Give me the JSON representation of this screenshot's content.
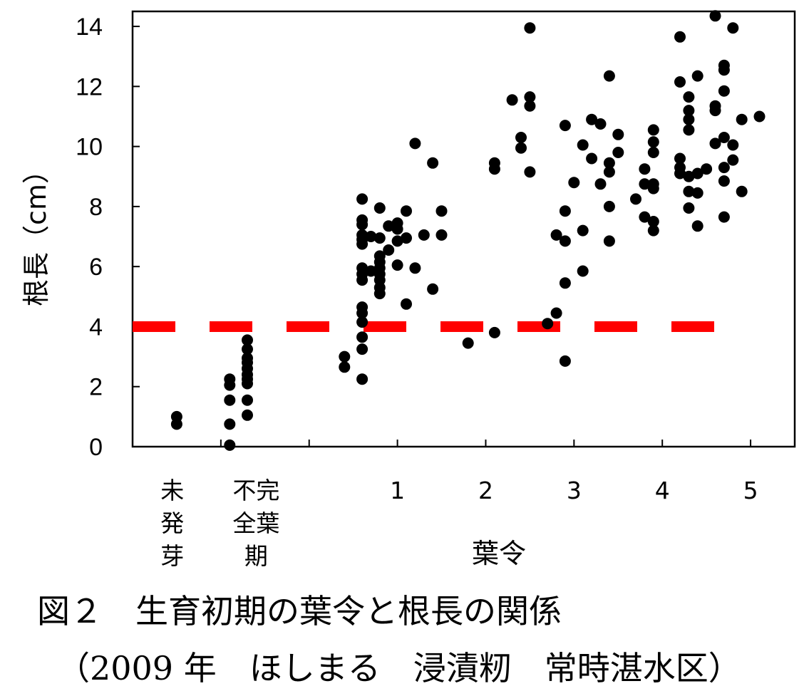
{
  "chart_data": {
    "type": "scatter",
    "ylabel": "根長（cm）",
    "xlabel": "葉令",
    "ylim": [
      0,
      14.5
    ],
    "yticks": [
      0,
      2,
      4,
      6,
      8,
      10,
      12,
      14
    ],
    "xlim": [
      -2,
      5.5
    ],
    "categories": [
      {
        "x": -1.5,
        "label": "未\n発\n芽"
      },
      {
        "x": -0.6,
        "label": "不完\n全葉\n期"
      },
      {
        "x": 1,
        "label": "1"
      },
      {
        "x": 2,
        "label": "2"
      },
      {
        "x": 3,
        "label": "3"
      },
      {
        "x": 4,
        "label": "4"
      },
      {
        "x": 5,
        "label": "5"
      }
    ],
    "threshold": {
      "y": 4,
      "color": "#ff0000",
      "style": "dashed"
    },
    "point_color": "#000000",
    "points": [
      [
        -1.5,
        1.0
      ],
      [
        -1.5,
        0.75
      ],
      [
        -0.9,
        2.25
      ],
      [
        -0.9,
        2.05
      ],
      [
        -0.9,
        1.55
      ],
      [
        -0.9,
        0.75
      ],
      [
        -0.9,
        0.05
      ],
      [
        -0.7,
        3.55
      ],
      [
        -0.7,
        3.25
      ],
      [
        -0.7,
        2.95
      ],
      [
        -0.7,
        2.8
      ],
      [
        -0.7,
        2.6
      ],
      [
        -0.7,
        2.4
      ],
      [
        -0.7,
        2.25
      ],
      [
        -0.7,
        2.1
      ],
      [
        -0.7,
        1.55
      ],
      [
        -0.7,
        1.05
      ],
      [
        0.4,
        3.0
      ],
      [
        0.4,
        2.65
      ],
      [
        0.6,
        8.25
      ],
      [
        0.6,
        7.55
      ],
      [
        0.6,
        7.4
      ],
      [
        0.6,
        7.05
      ],
      [
        0.6,
        6.9
      ],
      [
        0.6,
        6.75
      ],
      [
        0.6,
        5.95
      ],
      [
        0.6,
        5.75
      ],
      [
        0.6,
        5.55
      ],
      [
        0.6,
        4.65
      ],
      [
        0.6,
        4.45
      ],
      [
        0.6,
        4.15
      ],
      [
        0.6,
        3.65
      ],
      [
        0.6,
        3.25
      ],
      [
        0.6,
        2.25
      ],
      [
        0.7,
        7.0
      ],
      [
        0.7,
        5.85
      ],
      [
        0.8,
        7.95
      ],
      [
        0.8,
        6.95
      ],
      [
        0.8,
        6.35
      ],
      [
        0.8,
        6.15
      ],
      [
        0.8,
        5.95
      ],
      [
        0.8,
        5.75
      ],
      [
        0.8,
        5.55
      ],
      [
        0.8,
        5.3
      ],
      [
        0.8,
        5.1
      ],
      [
        0.9,
        7.35
      ],
      [
        0.9,
        6.55
      ],
      [
        1.0,
        7.45
      ],
      [
        1.0,
        7.25
      ],
      [
        1.0,
        6.85
      ],
      [
        1.0,
        6.05
      ],
      [
        1.1,
        7.85
      ],
      [
        1.1,
        6.95
      ],
      [
        1.1,
        4.75
      ],
      [
        1.2,
        10.1
      ],
      [
        1.2,
        5.95
      ],
      [
        1.3,
        7.05
      ],
      [
        1.4,
        9.45
      ],
      [
        1.4,
        5.25
      ],
      [
        1.5,
        7.85
      ],
      [
        1.5,
        7.05
      ],
      [
        1.8,
        3.45
      ],
      [
        2.1,
        9.45
      ],
      [
        2.1,
        9.25
      ],
      [
        2.1,
        3.8
      ],
      [
        2.3,
        11.55
      ],
      [
        2.4,
        10.3
      ],
      [
        2.4,
        9.95
      ],
      [
        2.5,
        13.95
      ],
      [
        2.5,
        11.65
      ],
      [
        2.5,
        11.35
      ],
      [
        2.5,
        9.15
      ],
      [
        2.7,
        4.1
      ],
      [
        2.8,
        7.05
      ],
      [
        2.8,
        4.45
      ],
      [
        2.9,
        10.7
      ],
      [
        2.9,
        7.85
      ],
      [
        2.9,
        6.85
      ],
      [
        2.9,
        5.45
      ],
      [
        2.9,
        2.85
      ],
      [
        3.0,
        8.8
      ],
      [
        3.1,
        10.05
      ],
      [
        3.1,
        7.2
      ],
      [
        3.1,
        5.85
      ],
      [
        3.2,
        10.9
      ],
      [
        3.2,
        9.6
      ],
      [
        3.3,
        10.75
      ],
      [
        3.3,
        8.75
      ],
      [
        3.4,
        12.35
      ],
      [
        3.4,
        9.45
      ],
      [
        3.4,
        9.15
      ],
      [
        3.4,
        8.0
      ],
      [
        3.4,
        6.85
      ],
      [
        3.5,
        10.4
      ],
      [
        3.5,
        9.8
      ],
      [
        3.7,
        8.25
      ],
      [
        3.8,
        9.25
      ],
      [
        3.8,
        8.75
      ],
      [
        3.8,
        7.65
      ],
      [
        3.9,
        10.55
      ],
      [
        3.9,
        10.15
      ],
      [
        3.9,
        9.8
      ],
      [
        3.9,
        8.75
      ],
      [
        3.9,
        8.6
      ],
      [
        3.9,
        7.5
      ],
      [
        3.9,
        7.2
      ],
      [
        4.2,
        13.65
      ],
      [
        4.2,
        12.15
      ],
      [
        4.2,
        9.6
      ],
      [
        4.2,
        9.3
      ],
      [
        4.2,
        9.1
      ],
      [
        4.3,
        11.65
      ],
      [
        4.3,
        11.2
      ],
      [
        4.3,
        10.9
      ],
      [
        4.3,
        10.55
      ],
      [
        4.3,
        9.0
      ],
      [
        4.3,
        8.5
      ],
      [
        4.3,
        7.95
      ],
      [
        4.4,
        12.35
      ],
      [
        4.4,
        9.1
      ],
      [
        4.4,
        8.45
      ],
      [
        4.4,
        7.35
      ],
      [
        4.5,
        9.25
      ],
      [
        4.6,
        14.35
      ],
      [
        4.6,
        11.35
      ],
      [
        4.6,
        11.2
      ],
      [
        4.6,
        10.1
      ],
      [
        4.7,
        12.7
      ],
      [
        4.7,
        12.55
      ],
      [
        4.7,
        11.85
      ],
      [
        4.7,
        10.3
      ],
      [
        4.7,
        9.3
      ],
      [
        4.7,
        8.85
      ],
      [
        4.7,
        7.65
      ],
      [
        4.8,
        13.95
      ],
      [
        4.8,
        10.05
      ],
      [
        4.8,
        9.55
      ],
      [
        4.9,
        10.9
      ],
      [
        4.9,
        8.5
      ],
      [
        5.1,
        11.0
      ]
    ]
  },
  "caption": {
    "line1": "図２　生育初期の葉令と根長の関係",
    "line2": "（2009 年　ほしまる　浸漬籾　常時湛水区）"
  }
}
